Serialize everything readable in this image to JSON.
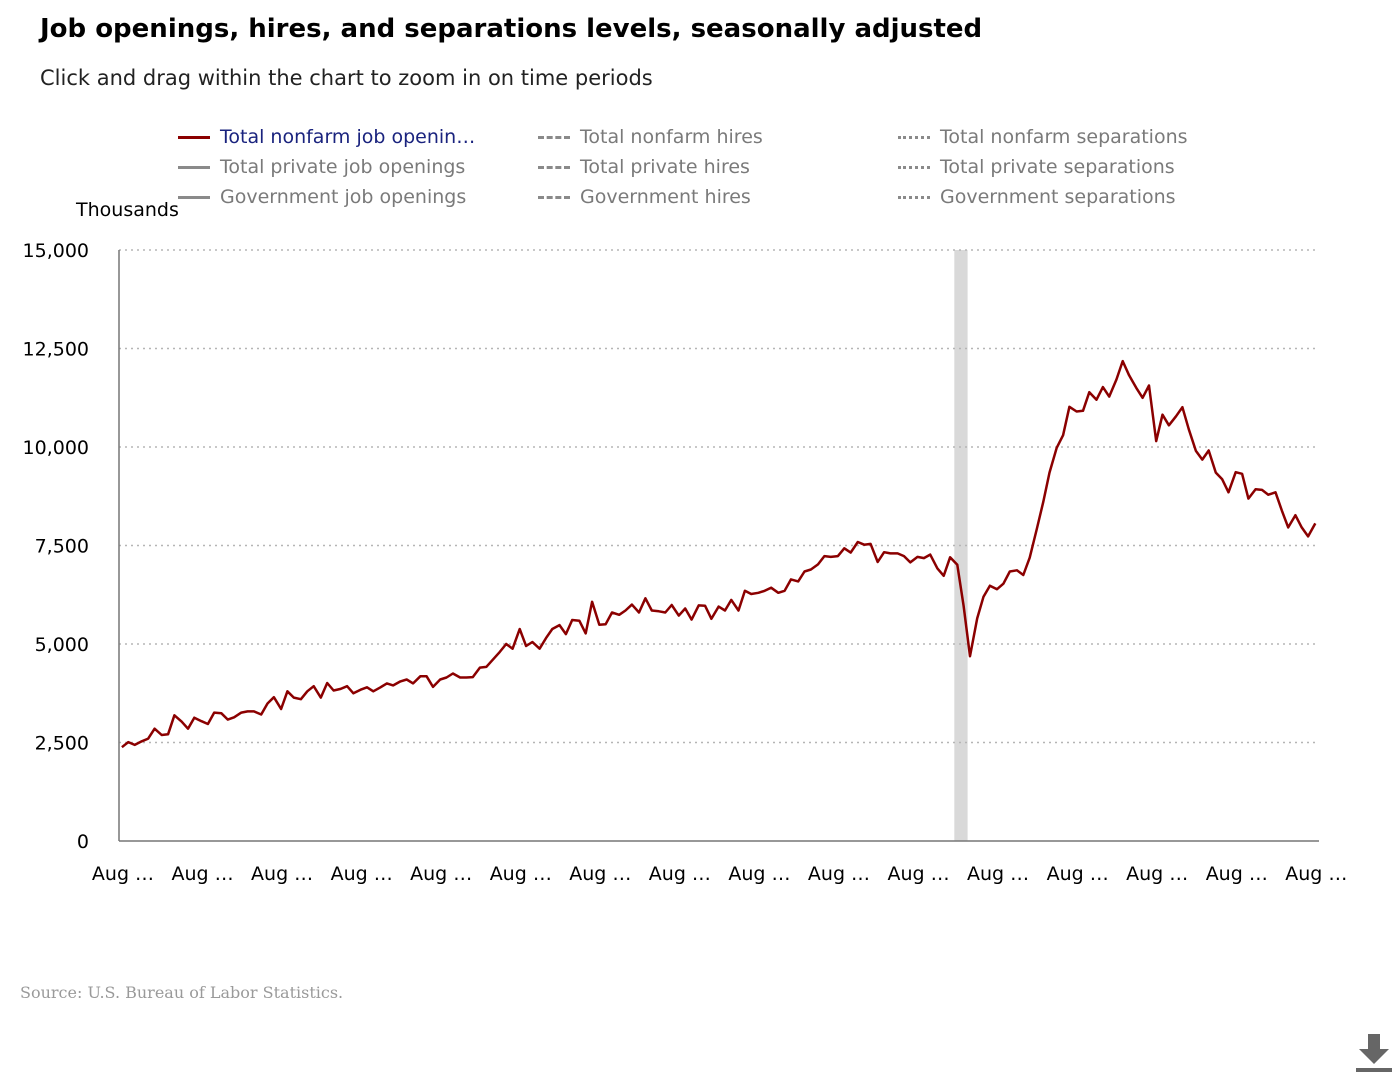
{
  "title": "Job openings, hires, and separations levels, seasonally adjusted",
  "subtitle": "Click and drag within the chart to zoom in on time periods",
  "source": "Source: U.S. Bureau of Labor Statistics.",
  "legend": [
    {
      "label": "Total nonfarm job openin…",
      "style": "solid",
      "color": "#8b0000",
      "active": true
    },
    {
      "label": "Total nonfarm hires",
      "style": "dashed",
      "color": "#8a8a8a",
      "active": false
    },
    {
      "label": "Total nonfarm separations",
      "style": "dotted",
      "color": "#8a8a8a",
      "active": false
    },
    {
      "label": "Total private job openings",
      "style": "solid",
      "color": "#8a8a8a",
      "active": false
    },
    {
      "label": "Total private hires",
      "style": "dashed",
      "color": "#8a8a8a",
      "active": false
    },
    {
      "label": "Total private separations",
      "style": "dotted",
      "color": "#8a8a8a",
      "active": false
    },
    {
      "label": "Government job openings",
      "style": "solid",
      "color": "#8a8a8a",
      "active": false
    },
    {
      "label": "Government hires",
      "style": "dashed",
      "color": "#8a8a8a",
      "active": false
    },
    {
      "label": "Government separations",
      "style": "dotted",
      "color": "#8a8a8a",
      "active": false
    }
  ],
  "icons": {
    "download": "download-icon"
  },
  "chart_data": {
    "type": "line",
    "ylabel": "Thousands",
    "ylim": [
      0,
      15000
    ],
    "yticks": [
      0,
      2500,
      5000,
      7500,
      10000,
      12500,
      15000
    ],
    "ytick_labels": [
      "0",
      "2,500",
      "5,000",
      "7,500",
      "10,000",
      "12,500",
      "15,000"
    ],
    "xlim": [
      2009.583,
      2024.667
    ],
    "xticks": [
      2009.583,
      2010.583,
      2011.583,
      2012.583,
      2013.583,
      2014.583,
      2015.583,
      2016.583,
      2017.583,
      2018.583,
      2019.583,
      2020.583,
      2021.583,
      2022.583,
      2023.583,
      2024.583
    ],
    "xtick_labels": [
      "Aug …",
      "Aug …",
      "Aug …",
      "Aug …",
      "Aug …",
      "Aug …",
      "Aug …",
      "Aug …",
      "Aug …",
      "Aug …",
      "Aug …",
      "Aug …",
      "Aug …",
      "Aug …",
      "Aug …",
      "Aug …"
    ],
    "grid": "horizontal dotted",
    "recession_shading": {
      "start": 2020.083,
      "end": 2020.25,
      "color": "#d9d9d9"
    },
    "series": [
      {
        "name": "Total nonfarm job openin…",
        "color": "#8b0000",
        "x": [
          2009.62,
          2009.7,
          2009.78,
          2009.87,
          2009.95,
          2010.03,
          2010.12,
          2010.2,
          2010.28,
          2010.37,
          2010.45,
          2010.53,
          2010.62,
          2010.7,
          2010.78,
          2010.87,
          2010.95,
          2011.03,
          2011.12,
          2011.2,
          2011.28,
          2011.37,
          2011.45,
          2011.53,
          2011.62,
          2011.7,
          2011.78,
          2011.87,
          2011.95,
          2012.03,
          2012.12,
          2012.2,
          2012.28,
          2012.37,
          2012.45,
          2012.53,
          2012.62,
          2012.7,
          2012.78,
          2012.87,
          2012.95,
          2013.03,
          2013.12,
          2013.2,
          2013.28,
          2013.37,
          2013.45,
          2013.53,
          2013.62,
          2013.7,
          2013.78,
          2013.87,
          2013.95,
          2014.03,
          2014.12,
          2014.2,
          2014.28,
          2014.37,
          2014.45,
          2014.53,
          2014.62,
          2014.7,
          2014.78,
          2014.87,
          2014.95,
          2015.03,
          2015.12,
          2015.2,
          2015.28,
          2015.37,
          2015.45,
          2015.53,
          2015.62,
          2015.7,
          2015.78,
          2015.87,
          2015.95,
          2016.03,
          2016.12,
          2016.2,
          2016.28,
          2016.37,
          2016.45,
          2016.53,
          2016.62,
          2016.7,
          2016.78,
          2016.87,
          2016.95,
          2017.03,
          2017.12,
          2017.2,
          2017.28,
          2017.37,
          2017.45,
          2017.53,
          2017.62,
          2017.7,
          2017.78,
          2017.87,
          2017.95,
          2018.03,
          2018.12,
          2018.2,
          2018.28,
          2018.37,
          2018.45,
          2018.53,
          2018.62,
          2018.7,
          2018.78,
          2018.87,
          2018.95,
          2019.03,
          2019.12,
          2019.2,
          2019.28,
          2019.37,
          2019.45,
          2019.53,
          2019.62,
          2019.7,
          2019.78,
          2019.87,
          2019.95,
          2020.03,
          2020.12,
          2020.2,
          2020.28,
          2020.37,
          2020.45,
          2020.53,
          2020.62,
          2020.7,
          2020.78,
          2020.87,
          2020.95,
          2021.03,
          2021.12,
          2021.2,
          2021.28,
          2021.37,
          2021.45,
          2021.53,
          2021.62,
          2021.7,
          2021.78,
          2021.87,
          2021.95,
          2022.03,
          2022.12,
          2022.2,
          2022.28,
          2022.37,
          2022.45,
          2022.53,
          2022.62,
          2022.7,
          2022.78,
          2022.87,
          2022.95,
          2023.03,
          2023.12,
          2023.2,
          2023.28,
          2023.37,
          2023.45,
          2023.53,
          2023.62,
          2023.7,
          2023.78,
          2023.87,
          2023.95,
          2024.03,
          2024.12,
          2024.2,
          2024.28,
          2024.37,
          2024.45,
          2024.53,
          2024.62
        ],
        "values": [
          2380,
          2510,
          2440,
          2530,
          2600,
          2850,
          2690,
          2710,
          3190,
          3030,
          2850,
          3130,
          3040,
          2970,
          3260,
          3240,
          3080,
          3140,
          3260,
          3290,
          3290,
          3210,
          3490,
          3650,
          3350,
          3800,
          3640,
          3600,
          3800,
          3930,
          3640,
          4010,
          3820,
          3860,
          3930,
          3750,
          3840,
          3900,
          3800,
          3900,
          4000,
          3950,
          4050,
          4100,
          4000,
          4180,
          4180,
          3910,
          4100,
          4150,
          4250,
          4150,
          4150,
          4160,
          4400,
          4420,
          4600,
          4800,
          5000,
          4880,
          5380,
          4950,
          5050,
          4880,
          5150,
          5380,
          5480,
          5250,
          5610,
          5590,
          5270,
          6070,
          5490,
          5500,
          5800,
          5740,
          5850,
          6000,
          5800,
          6160,
          5850,
          5830,
          5800,
          5990,
          5720,
          5900,
          5620,
          5980,
          5970,
          5640,
          5950,
          5850,
          6120,
          5850,
          6350,
          6270,
          6300,
          6350,
          6430,
          6300,
          6350,
          6640,
          6590,
          6840,
          6890,
          7020,
          7230,
          7210,
          7230,
          7430,
          7320,
          7590,
          7520,
          7540,
          7080,
          7330,
          7300,
          7300,
          7230,
          7070,
          7210,
          7180,
          7270,
          6920,
          6730,
          7200,
          7010,
          5970,
          4690,
          5650,
          6200,
          6480,
          6390,
          6530,
          6840,
          6870,
          6750,
          7190,
          7920,
          8600,
          9350,
          9980,
          10300,
          11020,
          10900,
          10920,
          11390,
          11200,
          11520,
          11280,
          11710,
          12180,
          11820,
          11500,
          11250,
          11560,
          10150,
          10820,
          10550,
          10780,
          11010,
          10450,
          9900,
          9680,
          9910,
          9350,
          9180,
          8850,
          9360,
          9320,
          8690,
          8930,
          8910,
          8790,
          8850,
          8390,
          7960,
          8270,
          7960,
          7730,
          8060
        ]
      }
    ]
  }
}
